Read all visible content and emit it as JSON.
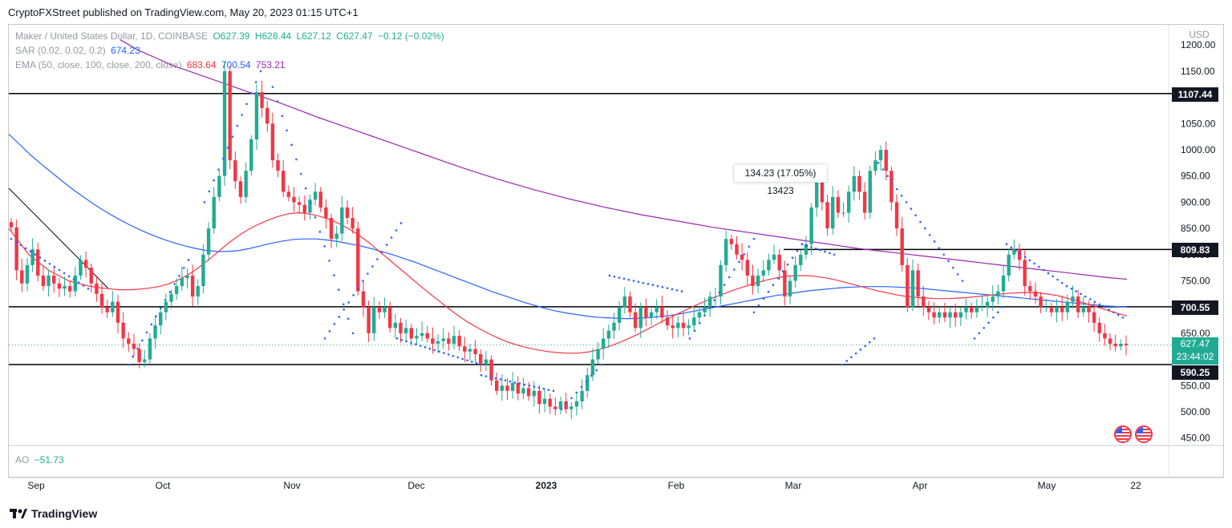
{
  "header": {
    "published_by": "CryptoFXStreet published on TradingView.com, May 20, 2023 01:15 UTC+1"
  },
  "legend": {
    "symbol": "Maker / United States Dollar, 1D, COINBASE",
    "o": "O627.39",
    "h": "H628.44",
    "l": "L627.12",
    "c": "C627.47",
    "change": "−0.12 (−0.02%)",
    "sar_label": "SAR (0.02, 0.02, 0.2)",
    "sar_value": "674.23",
    "ema_label": "EMA (50, close, 100, close, 200, close)",
    "ema50": "683.64",
    "ema100": "700.54",
    "ema200": "753.21",
    "ao_label": "AO",
    "ao_value": "−51.73"
  },
  "price_tags": {
    "level1": "1107.44",
    "level2": "809.83",
    "level3": "700.55",
    "current_price": "627.47",
    "countdown": "23:44:02",
    "level4": "590.25"
  },
  "measure_label": "134.23 (17.05%) 13423",
  "branding": "TradingView",
  "colors": {
    "up": "#22ab94",
    "down": "#f23645",
    "ema50": "#f23645",
    "ema100": "#2962ff",
    "ema200": "#9c27b0",
    "sar": "#2962ff",
    "level": "#000000"
  },
  "chart_data": {
    "type": "candlestick",
    "title": "Maker / United States Dollar, 1D, COINBASE",
    "currency_label": "USD",
    "y_ticks": [
      "1200.00",
      "1150.00",
      "1100.00",
      "1050.00",
      "1000.00",
      "950.00",
      "900.00",
      "850.00",
      "800.00",
      "750.00",
      "700.00",
      "650.00",
      "600.00",
      "550.00",
      "500.00",
      "450.00"
    ],
    "ylim": [
      450,
      1210
    ],
    "x_ticks": [
      "Sep",
      "Oct",
      "Nov",
      "Dec",
      "2023",
      "Feb",
      "Mar",
      "Apr",
      "May",
      "22"
    ],
    "horizontal_levels": [
      1107.44,
      809.83,
      700.55,
      590.25
    ],
    "candles_close": [
      852,
      770,
      745,
      780,
      810,
      760,
      740,
      760,
      745,
      735,
      740,
      730,
      760,
      790,
      775,
      745,
      725,
      700,
      690,
      710,
      670,
      640,
      630,
      620,
      595,
      600,
      640,
      665,
      690,
      710,
      725,
      740,
      755,
      760,
      720,
      740,
      800,
      850,
      910,
      950,
      1150,
      980,
      940,
      910,
      960,
      1020,
      1110,
      1080,
      1050,
      980,
      960,
      920,
      910,
      900,
      895,
      880,
      905,
      920,
      890,
      870,
      830,
      840,
      890,
      870,
      850,
      730,
      700,
      650,
      700,
      690,
      700,
      660,
      670,
      650,
      660,
      640,
      645,
      650,
      640,
      630,
      635,
      640,
      630,
      645,
      625,
      615,
      620,
      610,
      590,
      600,
      560,
      540,
      550,
      540,
      555,
      535,
      545,
      530,
      540,
      515,
      525,
      510,
      505,
      520,
      505,
      510,
      520,
      540,
      570,
      600,
      620,
      640,
      655,
      670,
      700,
      720,
      690,
      660,
      700,
      680,
      690,
      700,
      680,
      665,
      660,
      670,
      660,
      665,
      680,
      690,
      700,
      720,
      720,
      780,
      830,
      820,
      800,
      790,
      760,
      740,
      760,
      770,
      790,
      800,
      770,
      720,
      750,
      780,
      800,
      820,
      890,
      950,
      900,
      850,
      910,
      880,
      880,
      920,
      950,
      920,
      880,
      960,
      980,
      1000,
      960,
      900,
      850,
      780,
      700,
      770,
      720,
      700,
      690,
      680,
      690,
      680,
      690,
      680,
      690,
      700,
      690,
      700,
      700,
      710,
      720,
      730,
      760,
      800,
      810,
      790,
      740,
      730,
      720,
      700,
      700,
      690,
      700,
      690,
      710,
      720,
      690,
      700,
      690,
      670,
      650,
      640,
      630,
      625,
      630,
      627
    ],
    "ema50": [
      850,
      825,
      800,
      785,
      770,
      760,
      750,
      745,
      740,
      737,
      735,
      733,
      733,
      734,
      736,
      739,
      744,
      752,
      762,
      775,
      790,
      806,
      822,
      836,
      848,
      858,
      866,
      873,
      878,
      880,
      878,
      874,
      868,
      860,
      850,
      838,
      824,
      808,
      792,
      776,
      760,
      744,
      728,
      713,
      698,
      684,
      671,
      660,
      650,
      641,
      633,
      627,
      622,
      618,
      615,
      613,
      612,
      612,
      614,
      618,
      624,
      631,
      639,
      648,
      658,
      668,
      678,
      687,
      696,
      705,
      713,
      721,
      728,
      735,
      741,
      747,
      752,
      756,
      759,
      760,
      760,
      758,
      755,
      751,
      746,
      741,
      736,
      731,
      727,
      723,
      720,
      718,
      717,
      716,
      716,
      717,
      718,
      720,
      722,
      724,
      726,
      727,
      728,
      727,
      725,
      722,
      717,
      712,
      706,
      700,
      694,
      688,
      683
    ],
    "ema100": [
      1030,
      1010,
      990,
      972,
      955,
      938,
      922,
      907,
      893,
      880,
      868,
      857,
      847,
      838,
      830,
      823,
      817,
      812,
      808,
      806,
      806,
      808,
      812,
      817,
      822,
      826,
      829,
      830,
      830,
      828,
      825,
      821,
      817,
      812,
      806,
      800,
      793,
      786,
      778,
      770,
      762,
      754,
      746,
      738,
      730,
      723,
      716,
      709,
      703,
      697,
      692,
      688,
      685,
      682,
      680,
      679,
      678,
      678,
      679,
      681,
      683,
      686,
      690,
      694,
      698,
      702,
      706,
      710,
      714,
      718,
      722,
      725,
      728,
      731,
      733,
      735,
      737,
      738,
      739,
      739,
      739,
      738,
      737,
      736,
      734,
      732,
      730,
      728,
      726,
      724,
      722,
      720,
      718,
      716,
      714,
      712,
      710,
      708,
      706,
      704,
      702,
      701,
      700
    ],
    "ema200": [
      1210,
      1190,
      1175,
      1160,
      1148,
      1136,
      1124,
      1112,
      1100,
      1088,
      1075,
      1062,
      1050,
      1038,
      1026,
      1014,
      1002,
      990,
      978,
      966,
      955,
      944,
      934,
      924,
      915,
      906,
      898,
      890,
      883,
      876,
      870,
      864,
      858,
      852,
      847,
      842,
      837,
      832,
      827,
      822,
      817,
      812,
      808,
      804,
      800,
      796,
      792,
      788,
      784,
      780,
      776,
      772,
      768,
      764,
      760,
      756,
      753
    ]
  }
}
